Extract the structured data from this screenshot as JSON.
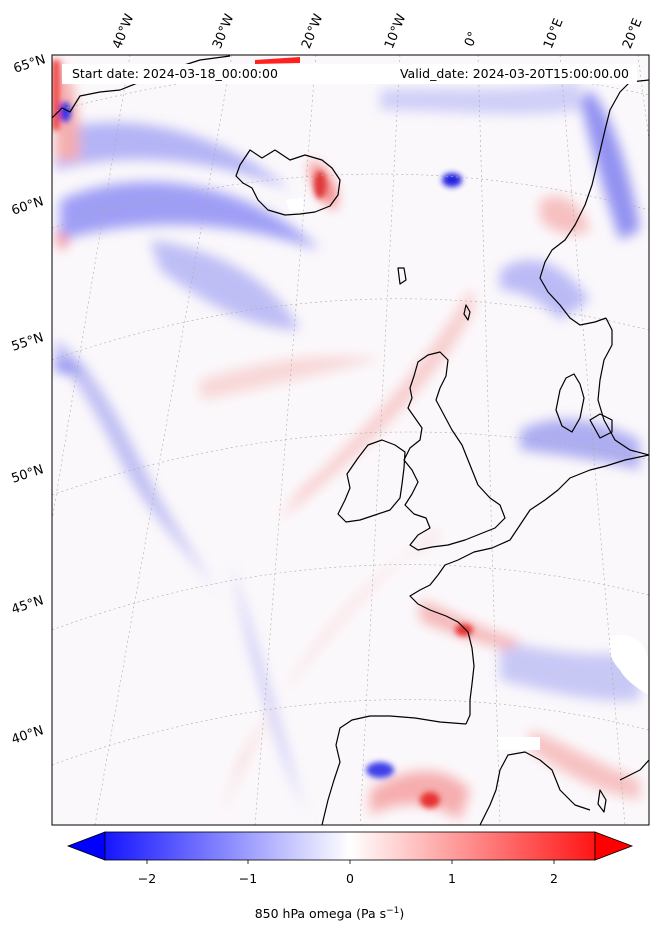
{
  "map": {
    "start_date_label": "Start date: 2024-03-18_00:00:00",
    "valid_date_label": "Valid_date: 2024-03-20T15:00:00.00",
    "lon_labels": [
      "40°W",
      "30°W",
      "20°W",
      "10°W",
      "0°",
      "10°E",
      "20°E"
    ],
    "lat_labels": [
      "65°N",
      "60°N",
      "55°N",
      "50°N",
      "45°N",
      "40°N"
    ],
    "colorbar": {
      "label_text": "850 hPa omega (Pa s",
      "label_sup": "−1",
      "label_close": ")",
      "ticks": [
        "−2",
        "−1",
        "0",
        "1",
        "2"
      ],
      "tick_values": [
        -2,
        -1,
        0,
        1,
        2
      ],
      "range": [
        -2.5,
        2.5
      ],
      "cmap": "bwr",
      "min_color": "#0000ff",
      "mid_color": "#ffffff",
      "max_color": "#ff0000",
      "extend": "both"
    },
    "coastline_color": "#000000",
    "gridline_color": "#aaaaaa"
  }
}
